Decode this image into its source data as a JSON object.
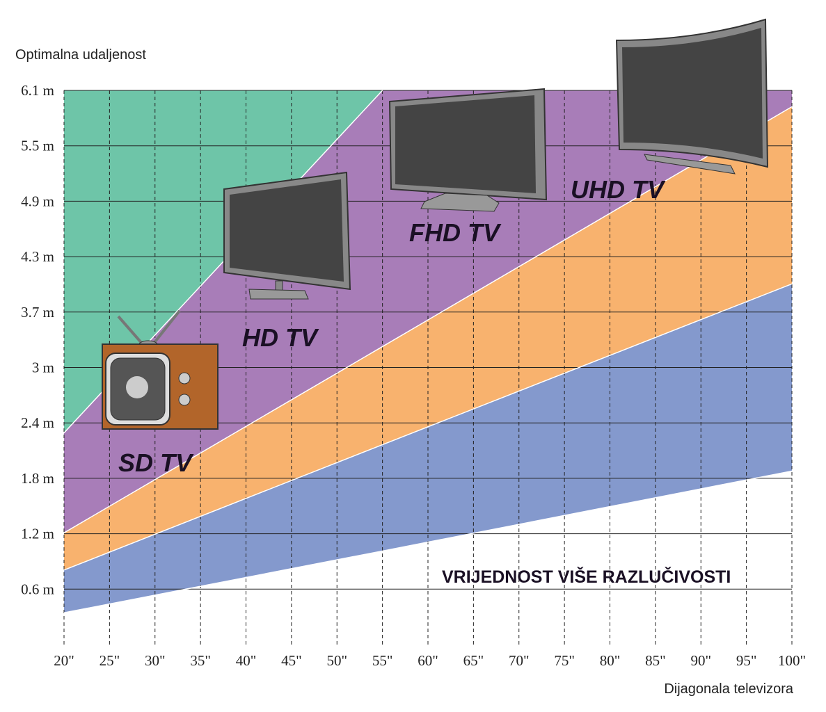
{
  "chart_data": {
    "type": "area",
    "y_label": "Optimalna udaljenost",
    "x_label": "Dijagonala televizora",
    "x": [
      20,
      55,
      100
    ],
    "series": [
      {
        "color": "#8499cd",
        "values": [
          0.35,
          1.03,
          1.91
        ]
      },
      {
        "color": "#f8b26e",
        "values": [
          0.82,
          2.2,
          3.97
        ]
      },
      {
        "color": "#a87db8",
        "values": [
          1.23,
          3.28,
          5.92
        ]
      },
      {
        "color": "#6ec5a8",
        "values": [
          2.33,
          6.1,
          null
        ]
      }
    ],
    "annotations": [
      "SD TV",
      "HD TV",
      "FHD TV",
      "UHD TV",
      "VRIJEDNOST VIŠE RAZLUČIVOSTI"
    ],
    "xlim": [
      20,
      100
    ],
    "ylim": [
      0,
      6.1
    ],
    "xticks": [
      {
        "value": 20,
        "label": "20\""
      },
      {
        "value": 25,
        "label": "25\""
      },
      {
        "value": 30,
        "label": "30\""
      },
      {
        "value": 35,
        "label": "35\""
      },
      {
        "value": 40,
        "label": "40\""
      },
      {
        "value": 45,
        "label": "45\""
      },
      {
        "value": 50,
        "label": "50\""
      },
      {
        "value": 55,
        "label": "55\""
      },
      {
        "value": 60,
        "label": "60\""
      },
      {
        "value": 65,
        "label": "65\""
      },
      {
        "value": 70,
        "label": "70\""
      },
      {
        "value": 75,
        "label": "75\""
      },
      {
        "value": 80,
        "label": "80\""
      },
      {
        "value": 85,
        "label": "85\""
      },
      {
        "value": 90,
        "label": "90\""
      },
      {
        "value": 95,
        "label": "95\""
      },
      {
        "value": 100,
        "label": "100\""
      }
    ],
    "yticks": [
      {
        "value": 0.61,
        "label": "0.6 m"
      },
      {
        "value": 1.22,
        "label": "1.2 m"
      },
      {
        "value": 1.83,
        "label": "1.8 m"
      },
      {
        "value": 2.44,
        "label": "2.4 m"
      },
      {
        "value": 3.05,
        "label": "3 m"
      },
      {
        "value": 3.66,
        "label": "3.7 m"
      },
      {
        "value": 4.27,
        "label": "4.3 m"
      },
      {
        "value": 4.88,
        "label": "4.9 m"
      },
      {
        "value": 5.49,
        "label": "5.5 m"
      },
      {
        "value": 6.1,
        "label": "6.1 m"
      }
    ],
    "grid": true
  }
}
